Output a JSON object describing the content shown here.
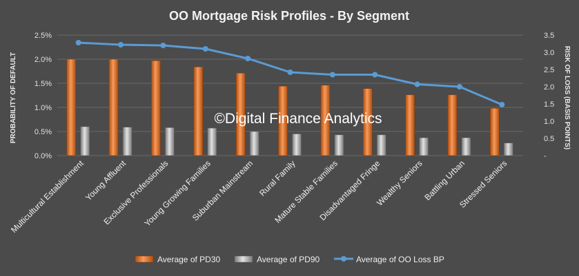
{
  "chart_data": {
    "type": "bar",
    "title": "OO Mortgage Risk Profiles - By Segment",
    "watermark": "©Digital Finance Analytics",
    "ylabel": "PROBABILITY OF DEFAULT",
    "y2label": "RISK OF LOSS (BASIS POINTS)",
    "ylim": [
      0,
      2.5
    ],
    "y_ticks": [
      "0.0%",
      "0.5%",
      "1.0%",
      "1.5%",
      "2.0%",
      "2.5%"
    ],
    "y2lim": [
      0,
      3.5
    ],
    "y2_ticks": [
      "-",
      "0.5",
      "1.0",
      "1.5",
      "2.0",
      "2.5",
      "3.0",
      "3.5"
    ],
    "categories": [
      "Multicultural Establishment",
      "Young Affluent",
      "Exclusive Professionals",
      "Young Growing Families",
      "Suburban Mainstream",
      "Rural Family",
      "Mature Stable Families",
      "Disadvantaged Fringe",
      "Wealthy Seniors",
      "Battling Urban",
      "Stressed Seniors"
    ],
    "series": [
      {
        "name": "Average of PD30",
        "type": "bar",
        "axis": "left",
        "color": "#e0702a",
        "values": [
          2.0,
          2.0,
          1.97,
          1.84,
          1.71,
          1.44,
          1.46,
          1.39,
          1.26,
          1.26,
          0.98
        ]
      },
      {
        "name": "Average of PD90",
        "type": "bar",
        "axis": "left",
        "color": "#a5a5a5",
        "values": [
          0.6,
          0.59,
          0.58,
          0.57,
          0.5,
          0.45,
          0.43,
          0.43,
          0.37,
          0.37,
          0.26
        ]
      },
      {
        "name": "Average of OO Loss BP",
        "type": "line",
        "axis": "right",
        "color": "#5b9bd5",
        "values": [
          3.28,
          3.22,
          3.2,
          3.1,
          2.82,
          2.42,
          2.35,
          2.35,
          2.07,
          2.0,
          1.48
        ]
      }
    ],
    "grid": true,
    "legend_position": "bottom"
  }
}
